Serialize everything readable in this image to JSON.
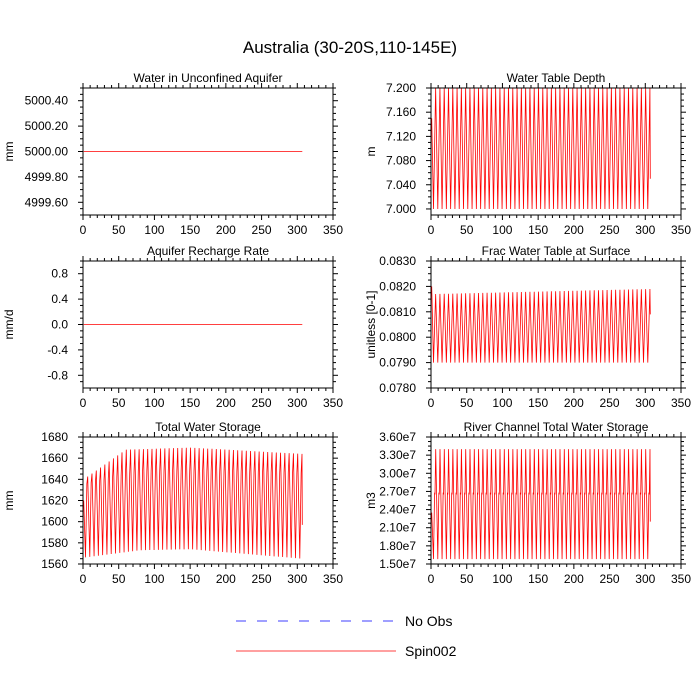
{
  "figure": {
    "title": "Australia (30-20S,110-145E)"
  },
  "colors": {
    "spin": "#ff0000",
    "obs": "#0000ff",
    "axis": "#000000"
  },
  "legend": [
    {
      "name": "No Obs",
      "style": "dashed",
      "color": "#0000ff"
    },
    {
      "name": "Spin002",
      "style": "solid",
      "color": "#ff0000"
    }
  ],
  "chart_data": [
    {
      "type": "line",
      "title": "Water in Unconfined Aquifer",
      "xlabel": "",
      "ylabel": "mm",
      "xlim": [
        0,
        350
      ],
      "ylim": [
        4999.5,
        5000.5
      ],
      "xticks": [
        0,
        50,
        100,
        150,
        200,
        250,
        300,
        350
      ],
      "xtick_labels": [
        "0",
        "50",
        "100",
        "150",
        "200",
        "250",
        "300",
        "350"
      ],
      "yticks": [
        4999.6,
        4999.8,
        5000.0,
        5000.2,
        5000.4
      ],
      "ytick_labels": [
        "4999.60",
        "4999.80",
        "5000.00",
        "5000.20",
        "5000.40"
      ],
      "series": [
        {
          "name": "Spin002",
          "kind": "constant",
          "x_range": [
            1,
            307
          ],
          "value": 5000.0
        }
      ]
    },
    {
      "type": "line",
      "title": "Water Table Depth",
      "xlabel": "",
      "ylabel": "m",
      "xlim": [
        0,
        350
      ],
      "ylim": [
        6.99,
        7.2
      ],
      "xticks": [
        0,
        50,
        100,
        150,
        200,
        250,
        300,
        350
      ],
      "xtick_labels": [
        "0",
        "50",
        "100",
        "150",
        "200",
        "250",
        "300",
        "350"
      ],
      "yticks": [
        7.0,
        7.04,
        7.08,
        7.12,
        7.16,
        7.2
      ],
      "ytick_labels": [
        "7.000",
        "7.040",
        "7.080",
        "7.120",
        "7.160",
        "7.200"
      ],
      "series": [
        {
          "name": "Spin002",
          "kind": "seasonal",
          "x_range": [
            1,
            307
          ],
          "period": 6,
          "low_start": 7.0,
          "low_end": 7.0,
          "high_start": 7.2,
          "high_end": 7.2,
          "start_value": 7.15,
          "end_value": 7.05
        }
      ]
    },
    {
      "type": "line",
      "title": "Aquifer Recharge Rate",
      "xlabel": "",
      "ylabel": "mm/d",
      "xlim": [
        0,
        350
      ],
      "ylim": [
        -1.0,
        1.0
      ],
      "xticks": [
        0,
        50,
        100,
        150,
        200,
        250,
        300,
        350
      ],
      "xtick_labels": [
        "0",
        "50",
        "100",
        "150",
        "200",
        "250",
        "300",
        "350"
      ],
      "yticks": [
        -0.8,
        -0.4,
        0.0,
        0.4,
        0.8
      ],
      "ytick_labels": [
        "-0.8",
        "-0.4",
        "0.0",
        "0.4",
        "0.8"
      ],
      "series": [
        {
          "name": "Spin002",
          "kind": "constant",
          "x_range": [
            1,
            307
          ],
          "value": 0.0
        }
      ]
    },
    {
      "type": "line",
      "title": "Frac Water Table at Surface",
      "xlabel": "",
      "ylabel": "unitless [0-1]",
      "xlim": [
        0,
        350
      ],
      "ylim": [
        0.078,
        0.083
      ],
      "xticks": [
        0,
        50,
        100,
        150,
        200,
        250,
        300,
        350
      ],
      "xtick_labels": [
        "0",
        "50",
        "100",
        "150",
        "200",
        "250",
        "300",
        "350"
      ],
      "yticks": [
        0.078,
        0.079,
        0.08,
        0.081,
        0.082,
        0.083
      ],
      "ytick_labels": [
        "0.0780",
        "0.0790",
        "0.0800",
        "0.0810",
        "0.0820",
        "0.0830"
      ],
      "series": [
        {
          "name": "Spin002",
          "kind": "seasonal",
          "x_range": [
            1,
            307
          ],
          "period": 6,
          "low_start": 0.079,
          "low_end": 0.079,
          "high_start": 0.0817,
          "high_end": 0.0819,
          "start_value": 0.082,
          "end_value": 0.0809
        }
      ]
    },
    {
      "type": "line",
      "title": "Total Water Storage",
      "xlabel": "",
      "ylabel": "mm",
      "xlim": [
        0,
        350
      ],
      "ylim": [
        1560,
        1680
      ],
      "xticks": [
        0,
        50,
        100,
        150,
        200,
        250,
        300,
        350
      ],
      "xtick_labels": [
        "0",
        "50",
        "100",
        "150",
        "200",
        "250",
        "300",
        "350"
      ],
      "yticks": [
        1560,
        1580,
        1600,
        1620,
        1640,
        1660,
        1680
      ],
      "ytick_labels": [
        "1560",
        "1580",
        "1600",
        "1620",
        "1640",
        "1660",
        "1680"
      ],
      "series": [
        {
          "name": "Spin002",
          "kind": "seasonal3",
          "x_range": [
            1,
            307
          ],
          "period": 6,
          "low": [
            [
              1,
              1566
            ],
            [
              80,
              1573
            ],
            [
              150,
              1574
            ],
            [
              307,
              1565
            ]
          ],
          "mid": [
            [
              1,
              1612
            ],
            [
              80,
              1628
            ],
            [
              150,
              1629
            ],
            [
              307,
              1621
            ]
          ],
          "mid2": [
            [
              1,
              1635
            ],
            [
              80,
              1648
            ],
            [
              150,
              1648
            ],
            [
              307,
              1646
            ]
          ],
          "high": [
            [
              1,
              1640
            ],
            [
              60,
              1668
            ],
            [
              150,
              1670
            ],
            [
              307,
              1664
            ]
          ],
          "start_value": 1620,
          "end_value": 1597
        }
      ]
    },
    {
      "type": "line",
      "title": "River Channel Total Water Storage",
      "xlabel": "",
      "ylabel": "m3",
      "xlim": [
        0,
        350
      ],
      "ylim": [
        15000000,
        36000000
      ],
      "xticks": [
        0,
        50,
        100,
        150,
        200,
        250,
        300,
        350
      ],
      "xtick_labels": [
        "0",
        "50",
        "100",
        "150",
        "200",
        "250",
        "300",
        "350"
      ],
      "yticks": [
        15000000,
        18000000,
        21000000,
        24000000,
        27000000,
        30000000,
        33000000,
        36000000
      ],
      "ytick_labels": [
        "1.50e7",
        "1.80e7",
        "2.10e7",
        "2.40e7",
        "2.70e7",
        "3.00e7",
        "3.30e7",
        "3.60e7"
      ],
      "series": [
        {
          "name": "Spin002",
          "kind": "seasonal2",
          "x_range": [
            1,
            307
          ],
          "period": 6,
          "low": 15800000,
          "mid": 26800000,
          "high": 34000000,
          "start_value": 23500000,
          "end_value": 22000000
        }
      ]
    }
  ]
}
